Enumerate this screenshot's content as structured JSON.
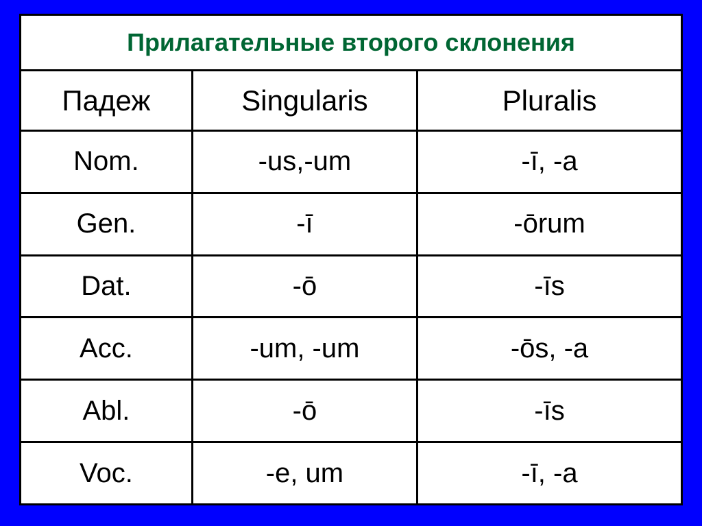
{
  "title": "Прилагательные второго склонения",
  "colors": {
    "background": "#0000ff",
    "title_text": "#006633",
    "cell_bg": "#ffffff",
    "border": "#000000",
    "text": "#000000"
  },
  "table": {
    "columns": [
      "Падеж",
      "Singularis",
      "Pluralis"
    ],
    "column_widths_pct": [
      26,
      34,
      40
    ],
    "header_fontsize": 42,
    "cell_fontsize": 40,
    "rows": [
      {
        "case": "Nom.",
        "singularis": "-us,-um",
        "pluralis": "-ī, -a"
      },
      {
        "case": "Gen.",
        "singularis": "-ī",
        "pluralis": "-ōrum"
      },
      {
        "case": "Dat.",
        "singularis": "-ō",
        "pluralis": "-īs"
      },
      {
        "case": "Acc.",
        "singularis": "-um, -um",
        "pluralis": "-ōs, -a"
      },
      {
        "case": "Abl.",
        "singularis": "-ō",
        "pluralis": "-īs"
      },
      {
        "case": "Voc.",
        "singularis": "-e, um",
        "pluralis": "-ī, -a"
      }
    ]
  }
}
